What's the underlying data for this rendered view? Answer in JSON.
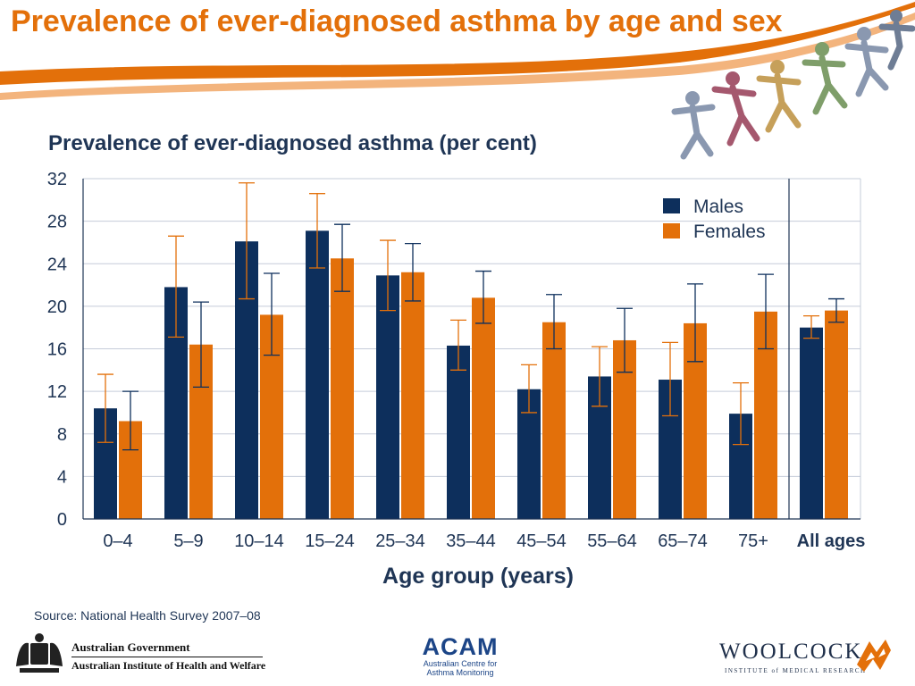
{
  "slide": {
    "title": "Prevalence of ever-diagnosed asthma by age and sex",
    "source": "Source: National Health Survey 2007–08"
  },
  "colors": {
    "males": "#0d2f5c",
    "females": "#e3700a",
    "grid": "#c5ccd9",
    "text": "#1f3555",
    "accent": "#e3700a"
  },
  "chart_data": {
    "type": "bar",
    "title": "Prevalence of ever-diagnosed asthma (per cent)",
    "xlabel": "Age group (years)",
    "ylabel": "",
    "ylim": [
      0,
      32
    ],
    "yticks": [
      0,
      4,
      8,
      12,
      16,
      20,
      24,
      28,
      32
    ],
    "grid": true,
    "legend_position": "top-right",
    "categories": [
      "0–4",
      "5–9",
      "10–14",
      "15–24",
      "25–34",
      "35–44",
      "45–54",
      "55–64",
      "65–74",
      "75+",
      "All ages"
    ],
    "series": [
      {
        "name": "Males",
        "values": [
          10.4,
          21.8,
          26.1,
          27.1,
          22.9,
          16.3,
          12.2,
          13.4,
          13.1,
          9.9,
          18.0
        ],
        "err_low": [
          7.2,
          17.1,
          20.7,
          23.6,
          19.6,
          14.0,
          10.0,
          10.6,
          9.7,
          7.0,
          17.0
        ],
        "err_high": [
          13.6,
          26.6,
          31.6,
          30.6,
          26.2,
          18.7,
          14.5,
          16.2,
          16.6,
          12.8,
          19.1
        ]
      },
      {
        "name": "Females",
        "values": [
          9.2,
          16.4,
          19.2,
          24.5,
          23.2,
          20.8,
          18.5,
          16.8,
          18.4,
          19.5,
          19.6
        ],
        "err_low": [
          6.5,
          12.4,
          15.4,
          21.4,
          20.5,
          18.4,
          16.0,
          13.8,
          14.8,
          16.0,
          18.5
        ],
        "err_high": [
          12.0,
          20.4,
          23.1,
          27.7,
          25.9,
          23.3,
          21.1,
          19.8,
          22.1,
          23.0,
          20.7
        ]
      }
    ]
  },
  "logos": {
    "gov_line1": "Australian Government",
    "gov_line2": "Australian Institute of Health and Welfare",
    "acam_word": "ACAM",
    "acam_sub1": "Australian Centre for",
    "acam_sub2": "Asthma Monitoring",
    "woolcock_word": "WOOLCOCK",
    "woolcock_sub": "INSTITUTE of MEDICAL RESEARCH"
  }
}
